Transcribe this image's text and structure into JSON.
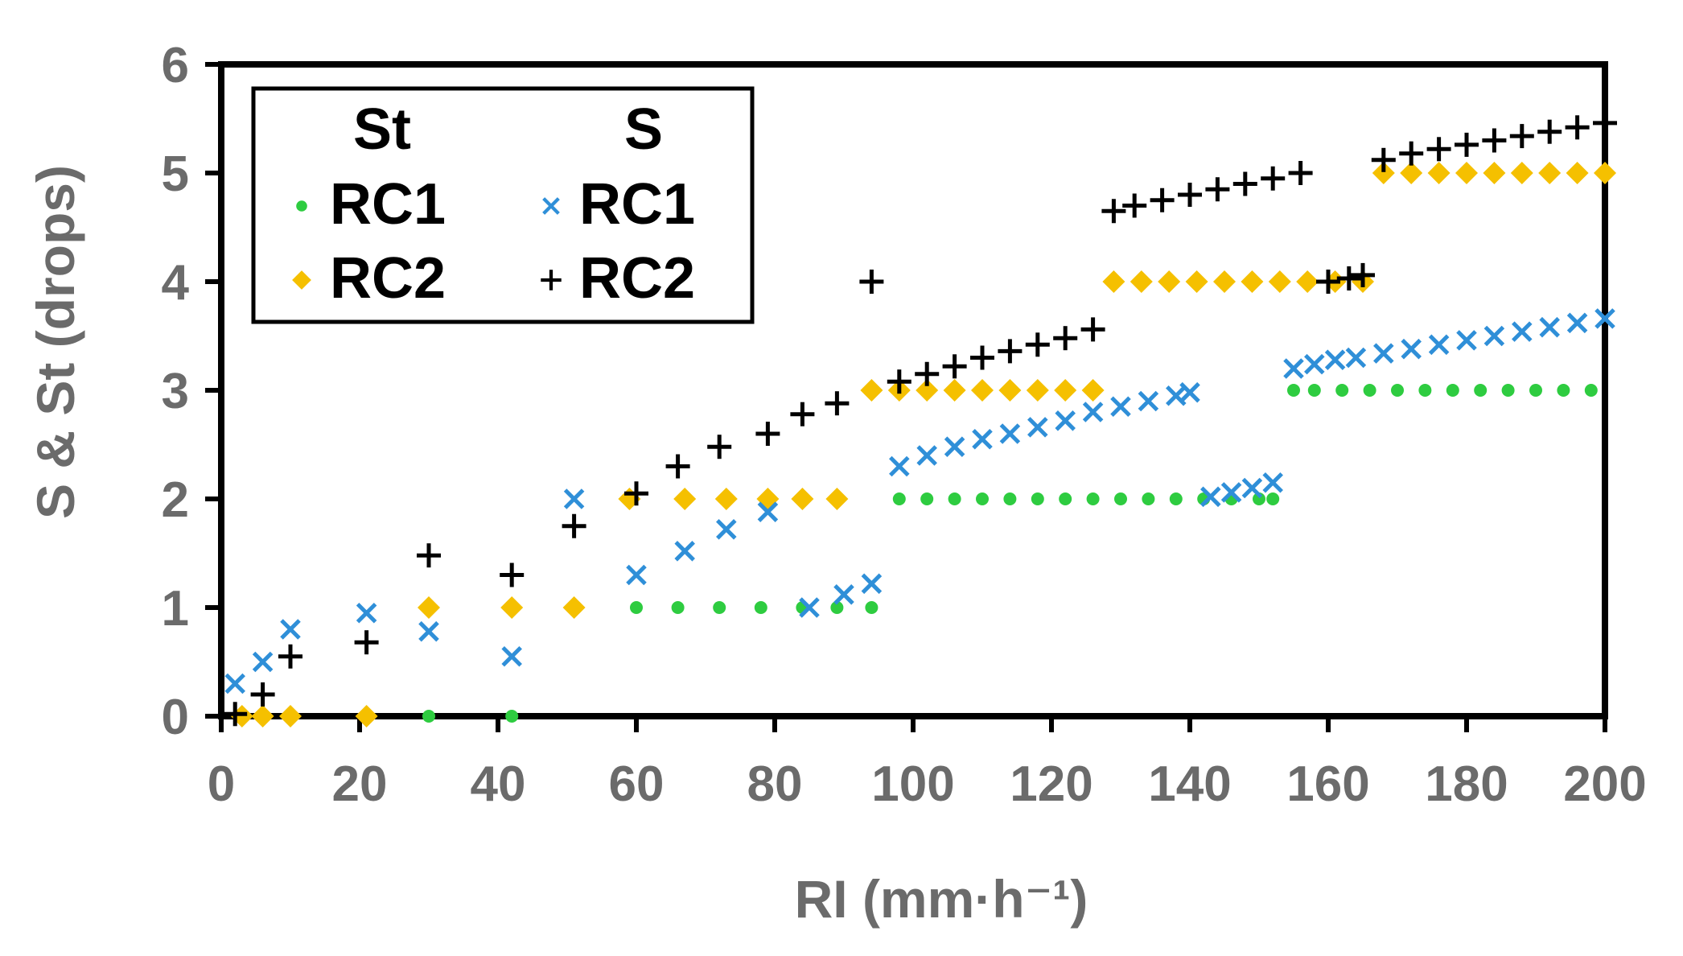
{
  "chart_data": {
    "type": "scatter",
    "title": "",
    "xlabel": "RI (mm·h⁻¹)",
    "ylabel": "S & St (drops)",
    "xlim": [
      0,
      200
    ],
    "ylim": [
      0,
      6
    ],
    "xticks": [
      "0",
      "20",
      "40",
      "60",
      "80",
      "100",
      "120",
      "140",
      "160",
      "180",
      "200"
    ],
    "yticks": [
      "0",
      "1",
      "2",
      "3",
      "4",
      "5",
      "6"
    ],
    "grid": false,
    "legend": {
      "position": "top-left",
      "headers": {
        "st": "St",
        "s": "S"
      },
      "entries": [
        {
          "label": "RC1",
          "series": "St RC1"
        },
        {
          "label": "RC2",
          "series": "St RC2"
        },
        {
          "label": "RC1",
          "series": "S RC1"
        },
        {
          "label": "RC2",
          "series": "S RC2"
        }
      ]
    },
    "series": [
      {
        "name": "St RC1",
        "marker": "circle",
        "color": "#2ecc40",
        "points": [
          [
            30,
            0
          ],
          [
            42,
            0
          ],
          [
            60,
            1
          ],
          [
            66,
            1
          ],
          [
            72,
            1
          ],
          [
            78,
            1
          ],
          [
            84,
            1
          ],
          [
            89,
            1
          ],
          [
            94,
            1
          ],
          [
            98,
            2
          ],
          [
            102,
            2
          ],
          [
            106,
            2
          ],
          [
            110,
            2
          ],
          [
            114,
            2
          ],
          [
            118,
            2
          ],
          [
            122,
            2
          ],
          [
            126,
            2
          ],
          [
            130,
            2
          ],
          [
            134,
            2
          ],
          [
            138,
            2
          ],
          [
            142,
            2
          ],
          [
            146,
            2
          ],
          [
            150,
            2
          ],
          [
            152,
            2
          ],
          [
            155,
            3
          ],
          [
            158,
            3
          ],
          [
            162,
            3
          ],
          [
            166,
            3
          ],
          [
            170,
            3
          ],
          [
            174,
            3
          ],
          [
            178,
            3
          ],
          [
            182,
            3
          ],
          [
            186,
            3
          ],
          [
            190,
            3
          ],
          [
            194,
            3
          ],
          [
            198,
            3
          ]
        ]
      },
      {
        "name": "St RC2",
        "marker": "diamond",
        "color": "#f5c000",
        "points": [
          [
            3,
            0
          ],
          [
            6,
            0
          ],
          [
            10,
            0
          ],
          [
            21,
            0
          ],
          [
            30,
            1
          ],
          [
            42,
            1
          ],
          [
            51,
            1
          ],
          [
            59,
            2
          ],
          [
            67,
            2
          ],
          [
            73,
            2
          ],
          [
            79,
            2
          ],
          [
            84,
            2
          ],
          [
            89,
            2
          ],
          [
            94,
            3
          ],
          [
            98,
            3
          ],
          [
            102,
            3
          ],
          [
            106,
            3
          ],
          [
            110,
            3
          ],
          [
            114,
            3
          ],
          [
            118,
            3
          ],
          [
            122,
            3
          ],
          [
            126,
            3
          ],
          [
            129,
            4
          ],
          [
            133,
            4
          ],
          [
            137,
            4
          ],
          [
            141,
            4
          ],
          [
            145,
            4
          ],
          [
            149,
            4
          ],
          [
            153,
            4
          ],
          [
            157,
            4
          ],
          [
            161,
            4
          ],
          [
            165,
            4
          ],
          [
            168,
            5
          ],
          [
            172,
            5
          ],
          [
            176,
            5
          ],
          [
            180,
            5
          ],
          [
            184,
            5
          ],
          [
            188,
            5
          ],
          [
            192,
            5
          ],
          [
            196,
            5
          ],
          [
            200,
            5
          ]
        ]
      },
      {
        "name": "S RC1",
        "marker": "x",
        "color": "#2f8fd8",
        "points": [
          [
            2,
            0.3
          ],
          [
            6,
            0.5
          ],
          [
            10,
            0.8
          ],
          [
            21,
            0.95
          ],
          [
            30,
            0.78
          ],
          [
            42,
            0.55
          ],
          [
            51,
            2.0
          ],
          [
            60,
            1.3
          ],
          [
            67,
            1.52
          ],
          [
            73,
            1.72
          ],
          [
            79,
            1.88
          ],
          [
            85,
            1.0
          ],
          [
            90,
            1.12
          ],
          [
            94,
            1.22
          ],
          [
            98,
            2.3
          ],
          [
            102,
            2.4
          ],
          [
            106,
            2.48
          ],
          [
            110,
            2.55
          ],
          [
            114,
            2.6
          ],
          [
            118,
            2.66
          ],
          [
            122,
            2.72
          ],
          [
            126,
            2.8
          ],
          [
            130,
            2.85
          ],
          [
            134,
            2.9
          ],
          [
            138,
            2.95
          ],
          [
            140,
            2.98
          ],
          [
            143,
            2.02
          ],
          [
            146,
            2.06
          ],
          [
            149,
            2.1
          ],
          [
            152,
            2.15
          ],
          [
            155,
            3.2
          ],
          [
            158,
            3.24
          ],
          [
            161,
            3.28
          ],
          [
            164,
            3.3
          ],
          [
            168,
            3.34
          ],
          [
            172,
            3.38
          ],
          [
            176,
            3.42
          ],
          [
            180,
            3.46
          ],
          [
            184,
            3.5
          ],
          [
            188,
            3.54
          ],
          [
            192,
            3.58
          ],
          [
            196,
            3.62
          ],
          [
            200,
            3.66
          ]
        ]
      },
      {
        "name": "S RC2",
        "marker": "plus",
        "color": "#000000",
        "points": [
          [
            2,
            0.02
          ],
          [
            6,
            0.2
          ],
          [
            10,
            0.55
          ],
          [
            21,
            0.68
          ],
          [
            30,
            1.48
          ],
          [
            42,
            1.3
          ],
          [
            51,
            1.75
          ],
          [
            60,
            2.05
          ],
          [
            66,
            2.3
          ],
          [
            72,
            2.48
          ],
          [
            79,
            2.6
          ],
          [
            84,
            2.78
          ],
          [
            89,
            2.88
          ],
          [
            94,
            4.0
          ],
          [
            98,
            3.08
          ],
          [
            102,
            3.15
          ],
          [
            106,
            3.22
          ],
          [
            110,
            3.3
          ],
          [
            114,
            3.36
          ],
          [
            118,
            3.42
          ],
          [
            122,
            3.48
          ],
          [
            126,
            3.56
          ],
          [
            129,
            4.65
          ],
          [
            132,
            4.7
          ],
          [
            136,
            4.75
          ],
          [
            140,
            4.8
          ],
          [
            144,
            4.85
          ],
          [
            148,
            4.9
          ],
          [
            152,
            4.95
          ],
          [
            156,
            5.0
          ],
          [
            160,
            4.0
          ],
          [
            163,
            4.03
          ],
          [
            165,
            4.06
          ],
          [
            168,
            5.12
          ],
          [
            172,
            5.18
          ],
          [
            176,
            5.22
          ],
          [
            180,
            5.26
          ],
          [
            184,
            5.3
          ],
          [
            188,
            5.34
          ],
          [
            192,
            5.38
          ],
          [
            196,
            5.42
          ],
          [
            200,
            5.46
          ]
        ]
      }
    ]
  }
}
